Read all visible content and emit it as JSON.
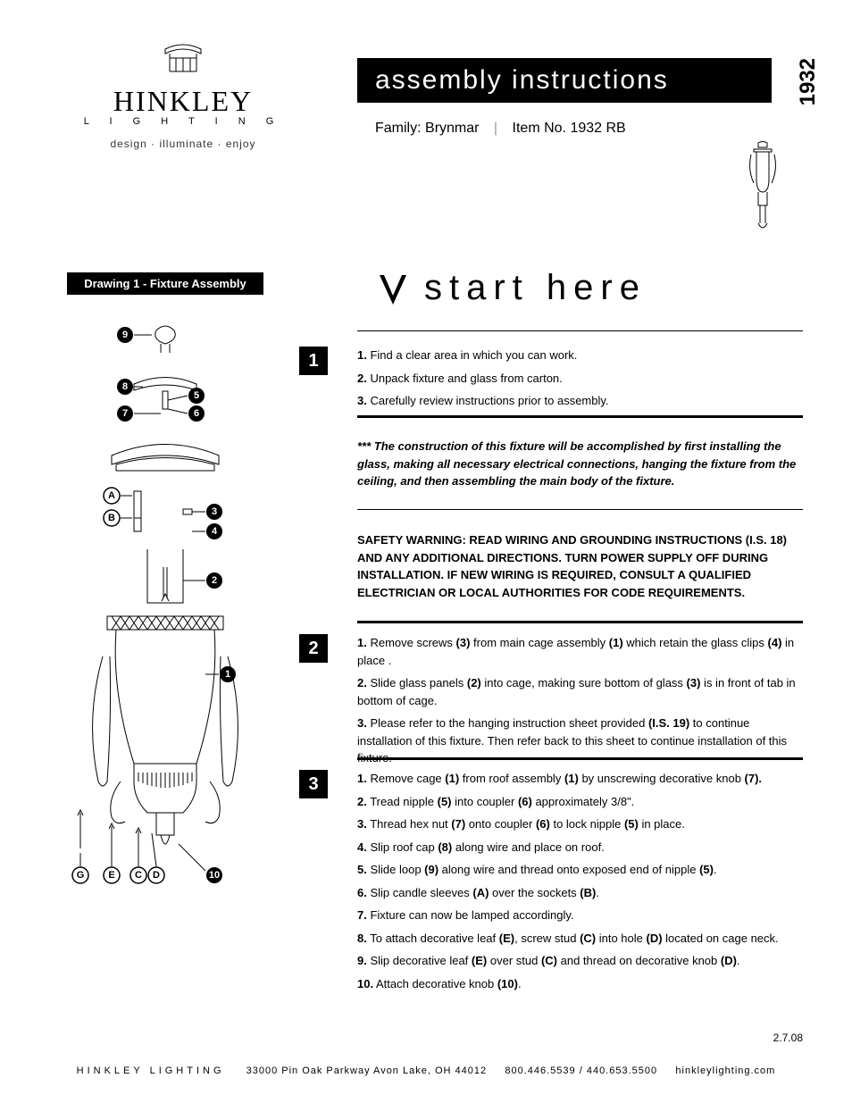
{
  "logo": {
    "name": "HINKLEY",
    "subtitle": "L I G H T I N G",
    "tagline": "design · illuminate · enjoy"
  },
  "header": {
    "title": "assembly instructions",
    "model": "1932",
    "family_label": "Family:",
    "family": "Brynmar",
    "item_label": "Item No.",
    "item": "1932 RB"
  },
  "drawing_label": "Drawing 1 - Fixture Assembly",
  "start_here": "start here",
  "section1": {
    "num": "1",
    "items": [
      {
        "n": "1.",
        "t": "Find a clear area in which you can work."
      },
      {
        "n": "2.",
        "t": "Unpack fixture and glass from carton."
      },
      {
        "n": "3.",
        "t": "Carefully review instructions prior to assembly."
      }
    ]
  },
  "construction_note": "*** The construction of this fixture will be accomplished by first installing the glass, making all necessary electrical connections, hanging the fixture from the ceiling, and then assembling the main body of the fixture.",
  "safety_warning": "SAFETY WARNING: READ WIRING AND GROUNDING INSTRUCTIONS (I.S. 18) AND ANY ADDITIONAL DIRECTIONS. TURN POWER SUPPLY OFF DURING INSTALLATION. IF NEW WIRING IS REQUIRED, CONSULT A QUALIFIED ELECTRICIAN OR LOCAL AUTHORITIES FOR CODE REQUIREMENTS.",
  "section2": {
    "num": "2",
    "items": [
      {
        "html": "<span class='num'>1.</span> Remove screws <b>(3)</b> from main cage assembly <b>(1)</b> which retain the glass clips <b>(4)</b> in place ."
      },
      {
        "html": "<span class='num'>2.</span> Slide glass panels <b>(2)</b> into cage, making sure bottom of glass <b>(3)</b> is in front of tab in bottom of cage."
      },
      {
        "html": "<span class='num'>3.</span> Please refer to the hanging instruction sheet provided <b>(I.S. 19)</b> to continue installation of this fixture. Then refer back to this sheet to continue installation of this fixture."
      }
    ]
  },
  "section3": {
    "num": "3",
    "items": [
      {
        "html": "<span class='num'>1.</span> Remove cage <b>(1)</b> from roof assembly <b>(1)</b> by unscrewing decorative knob <b>(7).</b>"
      },
      {
        "html": "<span class='num'>2.</span> Tread nipple <b>(5)</b> into coupler <b>(6)</b> approximately 3/8\"."
      },
      {
        "html": "<span class='num'>3.</span> Thread hex nut <b>(7)</b> onto coupler <b>(6)</b> to lock nipple <b>(5)</b> in place."
      },
      {
        "html": "<span class='num'>4.</span> Slip roof cap <b>(8)</b> along wire and place on roof."
      },
      {
        "html": "<span class='num'>5.</span> Slide loop <b>(9)</b> along wire and thread onto exposed end of nipple <b>(5)</b>."
      },
      {
        "html": "<span class='num'>6.</span> Slip candle sleeves <b>(A)</b> over the sockets <b>(B)</b>."
      },
      {
        "html": "<span class='num'>7.</span> Fixture can now be lamped accordingly."
      },
      {
        "html": "<span class='num'>8.</span> To attach decorative leaf <b>(E)</b>, screw stud <b>(C)</b> into hole <b>(D)</b> located on cage neck."
      },
      {
        "html": "<span class='num'>9.</span> Slip decorative leaf <b>(E)</b> over stud <b>(C)</b> and thread on decorative knob <b>(D)</b>."
      },
      {
        "html": "<span class='num'>10.</span> Attach decorative knob <b>(10)</b>."
      }
    ]
  },
  "date": "2.7.08",
  "footer": {
    "company": "HINKLEY LIGHTING",
    "address": "33000 Pin Oak Parkway   Avon Lake, OH  44012",
    "phone": "800.446.5539 / 440.653.5500",
    "web": "hinkleylighting.com"
  },
  "callouts": {
    "numbered": [
      "1",
      "2",
      "3",
      "4",
      "5",
      "6",
      "7",
      "8",
      "9",
      "10"
    ],
    "lettered": [
      "A",
      "B",
      "C",
      "D",
      "E",
      "G"
    ]
  },
  "colors": {
    "black": "#000000",
    "white": "#ffffff",
    "gray": "#999999"
  }
}
